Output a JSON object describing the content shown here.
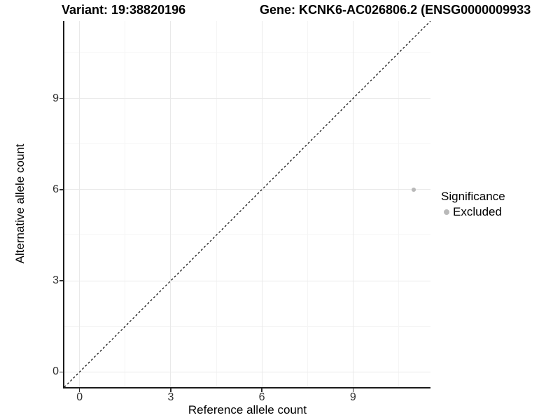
{
  "title": {
    "variant": "Variant: 19:38820196",
    "gene": "Gene: KCNK6-AC026806.2 (ENSG0000009933"
  },
  "axes": {
    "x_label": "Reference allele count",
    "y_label": "Alternative allele count"
  },
  "legend": {
    "title": "Significance",
    "items": [
      {
        "label": "Excluded",
        "color": "#b9b9b9"
      }
    ]
  },
  "colors": {
    "background": "#ffffff",
    "axis_line": "#1a1a1a",
    "tick_mark": "#333333",
    "tick_label": "#303030",
    "grid_major": "#e9e9e9",
    "grid_minor": "#f5f5f5",
    "reference_line": "#000000",
    "point_excluded": "#b9b9b9"
  },
  "chart_data": {
    "type": "scatter",
    "title": "Variant: 19:38820196 — Gene: KCNK6-AC026806.2 (ENSG0000009933",
    "xlabel": "Reference allele count",
    "ylabel": "Alternative allele count",
    "xlim": [
      -0.5,
      11.55
    ],
    "ylim": [
      -0.5,
      11.55
    ],
    "x_ticks": [
      0,
      3,
      6,
      9
    ],
    "y_ticks": [
      0,
      3,
      6,
      9
    ],
    "x_minor_ticks": [
      1.5,
      4.5,
      7.5,
      10.5
    ],
    "y_minor_ticks": [
      1.5,
      4.5,
      7.5,
      10.5
    ],
    "grid": {
      "major": true,
      "minor": true
    },
    "legend_position": "right",
    "series": [
      {
        "name": "Excluded",
        "color": "#b9b9b9",
        "point_radius": 2.8,
        "points": [
          {
            "x": 11,
            "y": 6
          }
        ]
      }
    ],
    "reference_line": {
      "kind": "identity",
      "equation": "y = x",
      "style": "dashed",
      "color": "#000000",
      "from": {
        "x": -0.5,
        "y": -0.5
      },
      "to": {
        "x": 11.55,
        "y": 11.55
      }
    }
  }
}
